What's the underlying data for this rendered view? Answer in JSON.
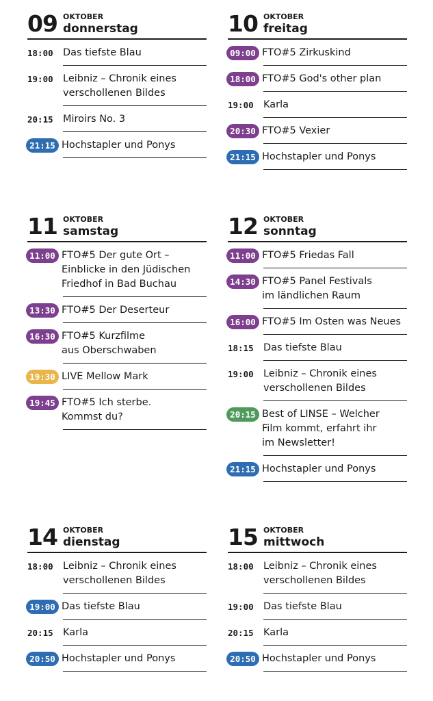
{
  "colors": {
    "fto": "#7d3f8e",
    "blue": "#2f6db3",
    "live": "#e8b64a",
    "green": "#4f9a5c"
  },
  "days": [
    {
      "num": "09",
      "month": "OKTOBER",
      "name": "donnerstag",
      "events": [
        {
          "time": "18:00",
          "title": "Das tiefste Blau"
        },
        {
          "time": "19:00",
          "title": "Leibniz – Chronik eines\nverschollenen Bildes"
        },
        {
          "time": "20:15",
          "title": "Miroirs No. 3"
        },
        {
          "time": "21:15",
          "title": "Hochstapler und Ponys",
          "pill": "blue"
        }
      ]
    },
    {
      "num": "10",
      "month": "OKTOBER",
      "name": "freitag",
      "events": [
        {
          "time": "09:00",
          "title": "FTO#5 Zirkuskind",
          "pill": "fto"
        },
        {
          "time": "18:00",
          "title": "FTO#5  God's other plan",
          "pill": "fto"
        },
        {
          "time": "19:00",
          "title": "Karla"
        },
        {
          "time": "20:30",
          "title": "FTO#5 Vexier",
          "pill": "fto"
        },
        {
          "time": "21:15",
          "title": "Hochstapler und Ponys",
          "pill": "blue"
        }
      ]
    },
    {
      "num": "11",
      "month": "OKTOBER",
      "name": "samstag",
      "events": [
        {
          "time": "11:00",
          "title": "FTO#5 Der gute Ort –\nEinblicke in den Jüdischen\nFriedhof in Bad Buchau",
          "pill": "fto"
        },
        {
          "time": "13:30",
          "title": "FTO#5 Der Deserteur",
          "pill": "fto"
        },
        {
          "time": "16:30",
          "title": "FTO#5 Kurzfilme\naus Oberschwaben",
          "pill": "fto"
        },
        {
          "time": "19:30",
          "title": "LIVE Mellow Mark",
          "pill": "live"
        },
        {
          "time": "19:45",
          "title": "FTO#5 Ich sterbe.\nKommst du?",
          "pill": "fto"
        }
      ]
    },
    {
      "num": "12",
      "month": "OKTOBER",
      "name": "sonntag",
      "events": [
        {
          "time": "11:00",
          "title": "FTO#5 Friedas Fall",
          "pill": "fto"
        },
        {
          "time": "14:30",
          "title": "FTO#5 Panel Festivals\nim ländlichen Raum",
          "pill": "fto"
        },
        {
          "time": "16:00",
          "title": "FTO#5 Im Osten was Neues",
          "pill": "fto"
        },
        {
          "time": "18:15",
          "title": "Das tiefste Blau"
        },
        {
          "time": "19:00",
          "title": "Leibniz – Chronik eines\nverschollenen Bildes"
        },
        {
          "time": "20:15",
          "title": "Best of LINSE – Welcher\nFilm kommt, erfahrt ihr\nim Newsletter!",
          "pill": "green"
        },
        {
          "time": "21:15",
          "title": "Hochstapler und Ponys",
          "pill": "blue"
        }
      ]
    },
    {
      "num": "14",
      "month": "OKTOBER",
      "name": "dienstag",
      "events": [
        {
          "time": "18:00",
          "title": "Leibniz – Chronik eines\nverschollenen Bildes"
        },
        {
          "time": "19:00",
          "title": "Das tiefste Blau",
          "pill": "blue"
        },
        {
          "time": "20:15",
          "title": "Karla"
        },
        {
          "time": "20:50",
          "title": "Hochstapler und Ponys",
          "pill": "blue"
        }
      ]
    },
    {
      "num": "15",
      "month": "OKTOBER",
      "name": "mittwoch",
      "events": [
        {
          "time": "18:00",
          "title": "Leibniz – Chronik eines\nverschollenen Bildes"
        },
        {
          "time": "19:00",
          "title": "Das tiefste Blau"
        },
        {
          "time": "20:15",
          "title": "Karla"
        },
        {
          "time": "20:50",
          "title": "Hochstapler und Ponys",
          "pill": "blue"
        }
      ]
    }
  ]
}
